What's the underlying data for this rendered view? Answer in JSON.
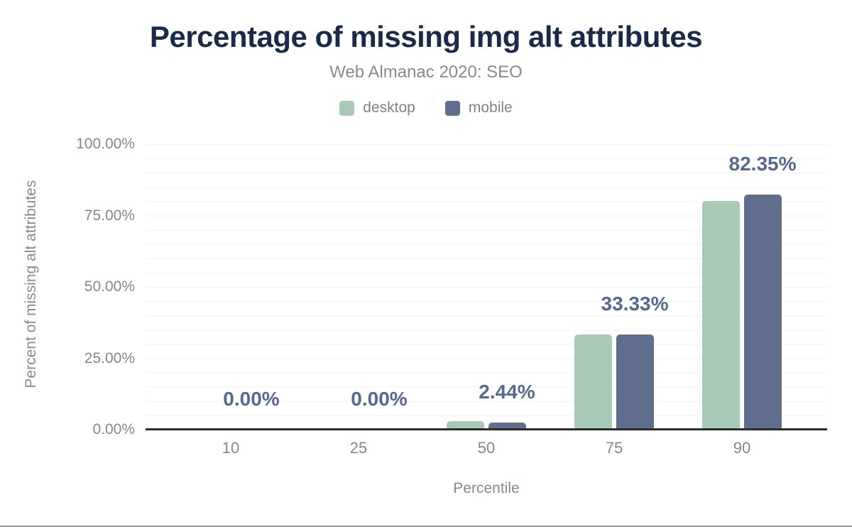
{
  "header": {
    "title": "Percentage of missing img alt attributes",
    "subtitle": "Web Almanac 2020: SEO"
  },
  "legend": {
    "items": [
      {
        "label": "desktop",
        "color": "#a8c9b6"
      },
      {
        "label": "mobile",
        "color": "#5f6e8c"
      }
    ]
  },
  "axes": {
    "y_title": "Percent of missing alt attributes",
    "x_title": "Percentile",
    "y_ticks": [
      "100.00%",
      "75.00%",
      "50.00%",
      "25.00%",
      "0.00%"
    ],
    "x_ticks": [
      "10",
      "25",
      "50",
      "75",
      "90"
    ]
  },
  "chart_data": {
    "type": "bar",
    "title": "Percentage of missing img alt attributes",
    "subtitle": "Web Almanac 2020: SEO",
    "categories": [
      "10",
      "25",
      "50",
      "75",
      "90"
    ],
    "xlabel": "Percentile",
    "ylabel": "Percent of missing alt attributes",
    "ylim": [
      0,
      100
    ],
    "y_major_tick_interval": 25,
    "gridline_interval": 5,
    "grid": true,
    "legend_position": "top",
    "series": [
      {
        "name": "desktop",
        "color": "#a8c9b6",
        "values": [
          0,
          0,
          3.0,
          33.33,
          80.0
        ]
      },
      {
        "name": "mobile",
        "color": "#5f6e8c",
        "values": [
          0,
          0,
          2.44,
          33.33,
          82.35
        ]
      }
    ],
    "value_labels": [
      "0.00%",
      "0.00%",
      "2.44%",
      "33.33%",
      "82.35%"
    ],
    "value_labels_source": "mobile"
  },
  "colors": {
    "title": "#1b2a49",
    "subtitle": "#8a8a8a",
    "axis_text": "#85878a",
    "value_label": "#56698f",
    "gridline": "#f2f2f2",
    "axis_line": "#2d2d2d",
    "background": "#ffffff"
  }
}
